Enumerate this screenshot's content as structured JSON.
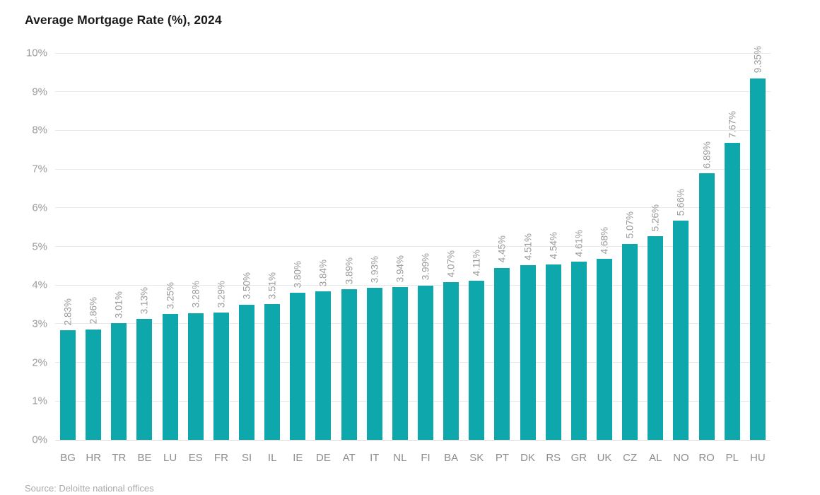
{
  "title": "Average Mortgage Rate (%), 2024",
  "source_note": "Source: Deloitte national offices",
  "colors": {
    "bar": "#0ea7ac",
    "grid": "#e9e9e9",
    "baseline": "#d9d9d9",
    "title": "#1a1a1a",
    "tick": "#9b9b9b",
    "xlabel": "#8d8d8d",
    "value_label": "#9a9a9a",
    "source": "#a9a9a9"
  },
  "chart_data": {
    "type": "bar",
    "title": "Average Mortgage Rate (%), 2024",
    "xlabel": "",
    "ylabel": "",
    "ylim": [
      0,
      10
    ],
    "y_tick_step": 1,
    "y_ticks": [
      "0%",
      "1%",
      "2%",
      "3%",
      "4%",
      "5%",
      "6%",
      "7%",
      "8%",
      "9%",
      "10%"
    ],
    "grid": true,
    "legend": false,
    "bar_orientation": "vertical",
    "value_label_rotation": "vertical-bottom-up",
    "categories": [
      "BG",
      "HR",
      "TR",
      "BE",
      "LU",
      "ES",
      "FR",
      "SI",
      "IL",
      "IE",
      "DE",
      "AT",
      "IT",
      "NL",
      "FI",
      "BA",
      "SK",
      "PT",
      "DK",
      "RS",
      "GR",
      "UK",
      "CZ",
      "AL",
      "NO",
      "RO",
      "PL",
      "HU"
    ],
    "values": [
      2.83,
      2.86,
      3.01,
      3.13,
      3.25,
      3.28,
      3.29,
      3.5,
      3.51,
      3.8,
      3.84,
      3.89,
      3.93,
      3.94,
      3.99,
      4.07,
      4.11,
      4.45,
      4.51,
      4.54,
      4.61,
      4.68,
      5.07,
      5.26,
      5.66,
      6.89,
      7.67,
      9.35
    ],
    "value_labels": [
      "2.83%",
      "2.86%",
      "3.01%",
      "3.13%",
      "3.25%",
      "3.28%",
      "3.29%",
      "3.50%",
      "3.51%",
      "3.80%",
      "3.84%",
      "3.89%",
      "3.93%",
      "3.94%",
      "3.99%",
      "4.07%",
      "4.11%",
      "4.45%",
      "4.51%",
      "4.54%",
      "4.61%",
      "4.68%",
      "5.07%",
      "5.26%",
      "5.66%",
      "6.89%",
      "7.67%",
      "9.35%"
    ],
    "source": "Source: Deloitte national offices"
  }
}
